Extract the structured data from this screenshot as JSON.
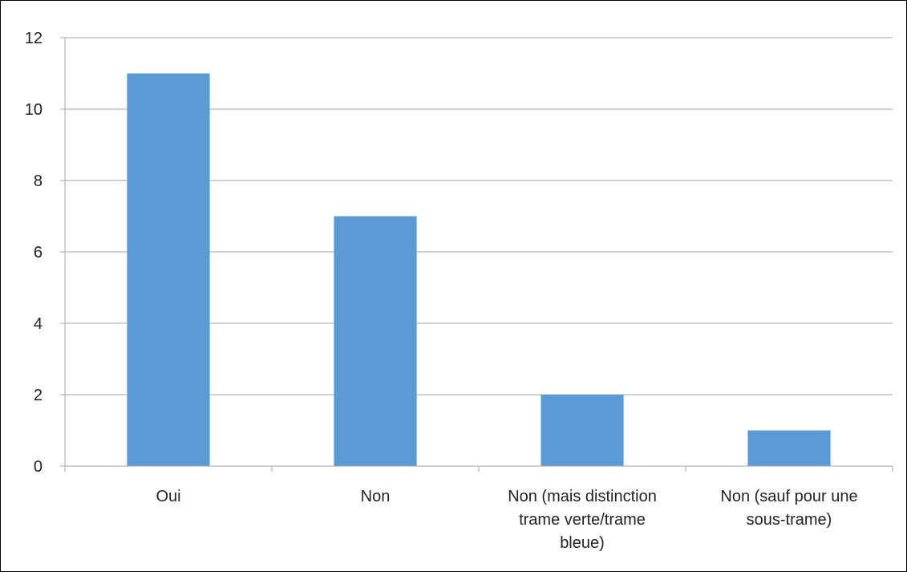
{
  "chart_data": {
    "type": "bar",
    "categories": [
      [
        "Oui"
      ],
      [
        "Non"
      ],
      [
        "Non (mais distinction",
        "trame verte/trame",
        "bleue)"
      ],
      [
        "Non (sauf pour une",
        "sous-trame)"
      ]
    ],
    "values": [
      11,
      7,
      2,
      1
    ],
    "title": "",
    "xlabel": "",
    "ylabel": "",
    "ylim": [
      0,
      12
    ],
    "yticks": [
      0,
      2,
      4,
      6,
      8,
      10,
      12
    ],
    "grid": true,
    "legend": "none",
    "bar_color": "#5b9bd5",
    "grid_color": "#a6a6a6",
    "axis_color": "#a6a6a6"
  }
}
